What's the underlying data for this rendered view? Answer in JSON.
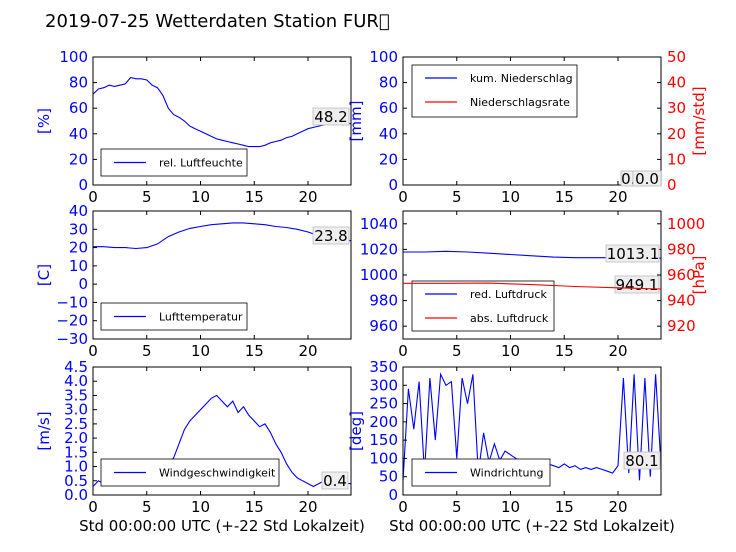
{
  "title": "2019-07-25 Wetterdaten Station FUR\u0000",
  "colors": {
    "primary": "#0000ff",
    "secondary": "#ff0000",
    "axis": "#000000",
    "annot_bg": "#eeeeee"
  },
  "chart_data": [
    {
      "type": "line",
      "ylabel": "[%]",
      "xlabel": "",
      "xlim": [
        0,
        24
      ],
      "ylim": [
        0,
        100
      ],
      "xticks": [
        "0",
        "5",
        "10",
        "15",
        "20"
      ],
      "yticks": [
        "0",
        "20",
        "40",
        "60",
        "80",
        "100"
      ],
      "legend": "bottom-left",
      "annotation": "48.2",
      "series": [
        {
          "name": "rel. Luftfeuchte",
          "color": "#0000ff",
          "axis": "left",
          "x": [
            0,
            0.5,
            1,
            1.5,
            2,
            2.5,
            3,
            3.5,
            4,
            4.5,
            5,
            5.5,
            6,
            6.5,
            7,
            7.5,
            8,
            8.5,
            9,
            9.5,
            10,
            10.5,
            11,
            11.5,
            12,
            12.5,
            13,
            13.5,
            14,
            14.5,
            15,
            15.5,
            16,
            16.5,
            17,
            17.5,
            18,
            18.5,
            19,
            19.5,
            20,
            20.5,
            21,
            21.5,
            22,
            22.5,
            23,
            23.5,
            24
          ],
          "y": [
            71,
            75,
            76,
            78,
            77,
            78,
            79,
            84,
            83,
            83,
            82,
            78,
            76,
            70,
            60,
            55,
            53,
            50,
            46,
            44,
            42,
            40,
            38,
            36,
            35,
            34,
            33,
            32,
            31,
            30,
            30,
            30,
            31,
            33,
            34,
            35,
            37,
            38,
            40,
            42,
            44,
            45,
            46,
            47,
            48,
            49,
            49,
            48,
            48
          ]
        }
      ]
    },
    {
      "type": "line",
      "ylabel": "[mm]",
      "y2label": "[mm/std]",
      "xlabel": "",
      "xlim": [
        0,
        24
      ],
      "ylim": [
        0,
        100
      ],
      "y2lim": [
        0,
        50
      ],
      "xticks": [
        "0",
        "5",
        "10",
        "15",
        "20"
      ],
      "yticks": [
        "0",
        "20",
        "40",
        "60",
        "80",
        "100"
      ],
      "y2ticks": [
        "0",
        "10",
        "20",
        "30",
        "40",
        "50"
      ],
      "legend": "top-left",
      "annotation": "0.0",
      "annotation2": "0.0",
      "series": [
        {
          "name": "kum. Niederschlag",
          "color": "#0000ff",
          "axis": "left",
          "x": [
            0,
            24
          ],
          "y": [
            0,
            0
          ]
        },
        {
          "name": "Niederschlagsrate",
          "color": "#ff0000",
          "axis": "right",
          "x": [
            0,
            24
          ],
          "y": [
            0,
            0
          ]
        }
      ]
    },
    {
      "type": "line",
      "ylabel": "[C]",
      "xlabel": "",
      "xlim": [
        0,
        24
      ],
      "ylim": [
        -30,
        40
      ],
      "xticks": [
        "0",
        "5",
        "10",
        "15",
        "20"
      ],
      "yticks": [
        "−30",
        "−20",
        "−10",
        "0",
        "10",
        "20",
        "30",
        "40"
      ],
      "legend": "bottom-left",
      "annotation": "23.8",
      "series": [
        {
          "name": "Lufttemperatur",
          "color": "#0000ff",
          "axis": "left",
          "x": [
            0,
            1,
            2,
            3,
            4,
            5,
            6,
            7,
            8,
            9,
            10,
            11,
            12,
            13,
            14,
            15,
            16,
            17,
            18,
            19,
            20,
            21,
            22,
            23,
            24
          ],
          "y": [
            20.5,
            20.5,
            20,
            20,
            19.5,
            20,
            22,
            26,
            28.5,
            30.5,
            31.5,
            32.5,
            33,
            33.5,
            33.5,
            33,
            32.5,
            31.5,
            31,
            30,
            28.5,
            26.5,
            25,
            24,
            23.8
          ]
        }
      ]
    },
    {
      "type": "line",
      "ylabel": "",
      "y2label": "[hPa]",
      "xlabel": "",
      "xlim": [
        0,
        24
      ],
      "ylim": [
        950,
        1050
      ],
      "y2lim": [
        910,
        1010
      ],
      "xticks": [
        "0",
        "5",
        "10",
        "15",
        "20"
      ],
      "yticks": [
        "960",
        "980",
        "1000",
        "1020",
        "1040"
      ],
      "y2ticks": [
        "920",
        "940",
        "960",
        "980",
        "1000"
      ],
      "legend": "bottom-left",
      "annotation": "1013.1",
      "annotation2": "949.1",
      "series": [
        {
          "name": "red. Luftdruck",
          "color": "#0000ff",
          "axis": "left",
          "x": [
            0,
            2,
            4,
            6,
            8,
            10,
            12,
            14,
            16,
            18,
            20,
            22,
            24
          ],
          "y": [
            1018,
            1018,
            1018.5,
            1018,
            1017,
            1016,
            1015,
            1014,
            1013.5,
            1013.5,
            1013.5,
            1013.3,
            1013.1
          ]
        }
      ]
    },
    {
      "type": "line",
      "ylabel": "[m/s]",
      "xlabel": "Std 00:00:00 UTC (+-22 Std Lokalzeit)",
      "xlim": [
        0,
        24
      ],
      "ylim": [
        0,
        4.5
      ],
      "xticks": [
        "0",
        "5",
        "10",
        "15",
        "20"
      ],
      "yticks": [
        "0.0",
        "0.5",
        "1.0",
        "1.5",
        "2.0",
        "2.5",
        "3.0",
        "3.5",
        "4.0",
        "4.5"
      ],
      "legend": "bottom-left",
      "annotation": "0.4",
      "series": [
        {
          "name": "Windgeschwindigkeit",
          "color": "#0000ff",
          "axis": "left",
          "x": [
            0,
            0.5,
            1,
            1.5,
            2,
            2.5,
            3,
            3.5,
            4,
            4.5,
            5,
            5.5,
            6,
            6.5,
            7,
            7.5,
            8,
            8.5,
            9,
            9.5,
            10,
            10.5,
            11,
            11.5,
            12,
            12.5,
            13,
            13.5,
            14,
            14.5,
            15,
            15.5,
            16,
            16.5,
            17,
            17.5,
            18,
            18.5,
            19,
            19.5,
            20,
            20.5,
            21,
            21.5,
            22,
            22.5,
            23,
            23.5,
            24
          ],
          "y": [
            0.3,
            0.5,
            0.4,
            0.7,
            0.5,
            0.9,
            0.6,
            1.0,
            0.7,
            0.8,
            0.6,
            0.9,
            1.0,
            0.8,
            1.1,
            1.3,
            1.8,
            2.3,
            2.6,
            2.8,
            3.0,
            3.2,
            3.4,
            3.5,
            3.3,
            3.1,
            3.3,
            2.9,
            3.1,
            2.8,
            2.6,
            2.4,
            2.5,
            2.2,
            1.8,
            1.5,
            1.1,
            0.8,
            0.6,
            0.5,
            0.4,
            0.3,
            0.4,
            0.5,
            0.3,
            0.4,
            0.5,
            0.4,
            0.4
          ]
        }
      ]
    },
    {
      "type": "line",
      "ylabel": "[deg]",
      "xlabel": "Std 00:00:00 UTC (+-22 Std Lokalzeit)",
      "xlim": [
        0,
        24
      ],
      "ylim": [
        0,
        350
      ],
      "xticks": [
        "0",
        "5",
        "10",
        "15",
        "20"
      ],
      "yticks": [
        "0",
        "50",
        "100",
        "150",
        "200",
        "250",
        "300",
        "350"
      ],
      "legend": "bottom-left",
      "annotation": "80.1",
      "series": [
        {
          "name": "Windrichtung",
          "color": "#0000ff",
          "axis": "left",
          "x": [
            0,
            0.5,
            1,
            1.5,
            2,
            2.5,
            3,
            3.5,
            4,
            4.5,
            5,
            5.5,
            6,
            6.5,
            7,
            7.5,
            8,
            8.5,
            9,
            9.5,
            10,
            10.5,
            11,
            11.5,
            12,
            12.5,
            13,
            13.5,
            14,
            14.5,
            15,
            15.5,
            16,
            16.5,
            17,
            17.5,
            18,
            18.5,
            19,
            19.5,
            20,
            20.5,
            21,
            21.5,
            22,
            22.5,
            23,
            23.5,
            24
          ],
          "y": [
            40,
            290,
            180,
            310,
            60,
            320,
            150,
            330,
            300,
            310,
            100,
            320,
            250,
            330,
            60,
            170,
            90,
            140,
            95,
            120,
            110,
            100,
            90,
            85,
            95,
            80,
            90,
            85,
            80,
            75,
            85,
            75,
            80,
            70,
            75,
            70,
            75,
            70,
            65,
            60,
            80,
            320,
            60,
            330,
            40,
            320,
            50,
            330,
            80
          ]
        }
      ]
    }
  ]
}
